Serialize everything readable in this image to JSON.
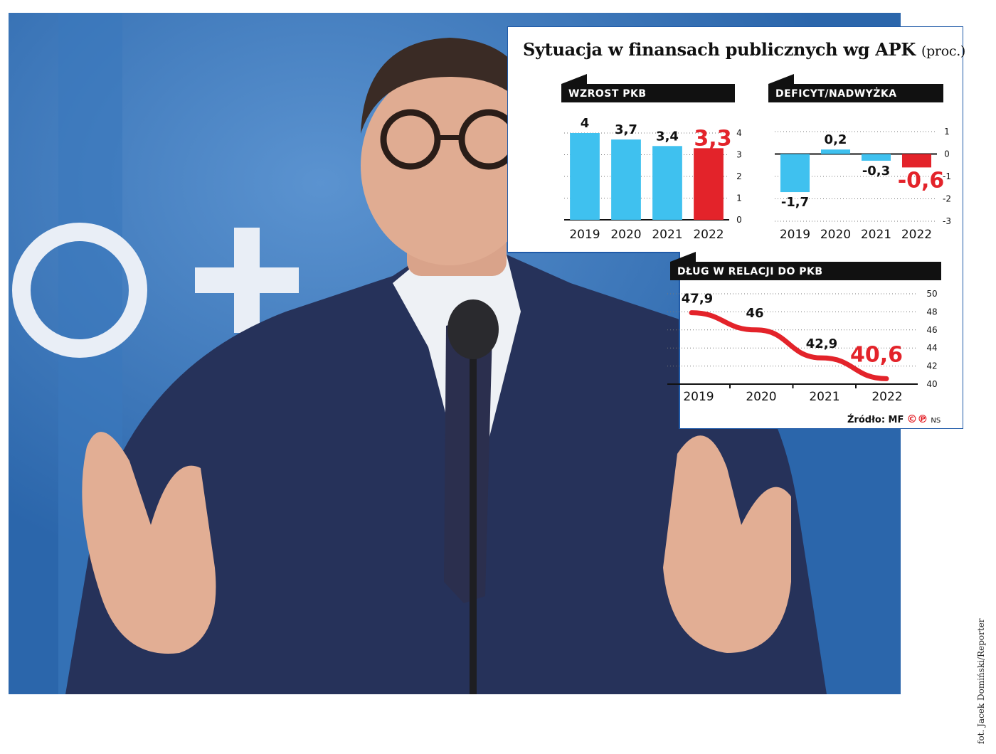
{
  "infographic": {
    "title": "Sytuacja w finansach publicznych wg APK",
    "unit": "(proc.)",
    "source": "Źródło: MF",
    "logo": "©℗",
    "initials": "NS"
  },
  "photo_credit": "fot. Jacek Domiński/Reporter",
  "colors": {
    "bar": "#3fc1ef",
    "highlight": "#e3232a",
    "header": "#111111",
    "frame": "#1f5aa8"
  },
  "chart_data": [
    {
      "type": "bar",
      "title": "WZROST PKB",
      "categories": [
        "2019",
        "2020",
        "2021",
        "2022"
      ],
      "values": [
        4,
        3.7,
        3.4,
        3.3
      ],
      "labels": [
        "4",
        "3,7",
        "3,4",
        "3,3"
      ],
      "highlight_index": 3,
      "ylim": [
        0,
        4
      ],
      "yticks": [
        "0",
        "1",
        "2",
        "3",
        "4"
      ],
      "grid": true
    },
    {
      "type": "bar",
      "title": "DEFICYT/NADWYŻKA",
      "categories": [
        "2019",
        "2020",
        "2021",
        "2022"
      ],
      "values": [
        -1.7,
        0.2,
        -0.3,
        -0.6
      ],
      "labels": [
        "-1,7",
        "0,2",
        "-0,3",
        "-0,6"
      ],
      "highlight_index": 3,
      "ylim": [
        -3,
        1
      ],
      "yticks": [
        "1",
        "0",
        "-1",
        "-2",
        "-3"
      ],
      "grid": true
    },
    {
      "type": "line",
      "title": "DŁUG W RELACJI DO PKB",
      "x": [
        "2019",
        "2020",
        "2021",
        "2022"
      ],
      "values": [
        47.9,
        46,
        42.9,
        40.6
      ],
      "labels": [
        "47,9",
        "46",
        "42,9",
        "40,6"
      ],
      "highlight_index": 3,
      "ylim": [
        40,
        50
      ],
      "yticks": [
        "50",
        "48",
        "46",
        "44",
        "42",
        "40"
      ],
      "grid": true
    }
  ]
}
